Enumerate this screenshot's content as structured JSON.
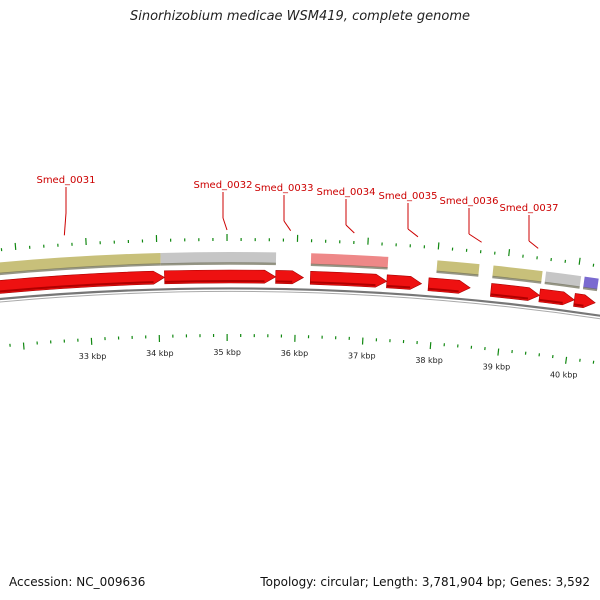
{
  "title": "Sinorhizobium medicae WSM419, complete genome",
  "footer": {
    "accession": "Accession: NC_009636",
    "summary": "Topology: circular; Length: 3,781,904 bp; Genes: 3,592"
  },
  "colors": {
    "cds": "#ee1111",
    "feature_olive": "#c8c07a",
    "feature_gray": "#c6c6c6",
    "feature_pink": "#ee8888",
    "feature_purple": "#7a6ad0",
    "tick": "#118811",
    "label": "#cc0000",
    "backbone": "#777777"
  },
  "gene_labels": [
    {
      "name": "Smed_0031",
      "kbp": 32.7
    },
    {
      "name": "Smed_0032",
      "kbp": 35.0
    },
    {
      "name": "Smed_0033",
      "kbp": 35.9
    },
    {
      "name": "Smed_0034",
      "kbp": 36.8
    },
    {
      "name": "Smed_0035",
      "kbp": 37.7
    },
    {
      "name": "Smed_0036",
      "kbp": 38.6
    },
    {
      "name": "Smed_0037",
      "kbp": 39.4
    }
  ],
  "kbp_ticks": [
    "33 kbp",
    "34 kbp",
    "35 kbp",
    "36 kbp",
    "37 kbp",
    "38 kbp",
    "39 kbp",
    "40 kbp"
  ],
  "cds_arrows": [
    {
      "start": 31.7,
      "end": 34.1
    },
    {
      "start": 34.1,
      "end": 35.7
    },
    {
      "start": 35.7,
      "end": 36.1
    },
    {
      "start": 36.2,
      "end": 37.3
    },
    {
      "start": 37.3,
      "end": 37.8
    },
    {
      "start": 37.9,
      "end": 38.5
    },
    {
      "start": 38.8,
      "end": 39.5
    },
    {
      "start": 39.5,
      "end": 40.0
    },
    {
      "start": 40.0,
      "end": 40.3
    }
  ],
  "upper_features": [
    {
      "start": 31.7,
      "end": 34.05,
      "type": "olive"
    },
    {
      "start": 34.05,
      "end": 35.7,
      "type": "gray"
    },
    {
      "start": 36.2,
      "end": 37.3,
      "type": "pink"
    },
    {
      "start": 38.0,
      "end": 38.6,
      "type": "olive"
    },
    {
      "start": 38.8,
      "end": 39.5,
      "type": "olive"
    },
    {
      "start": 39.55,
      "end": 40.05,
      "type": "gray"
    },
    {
      "start": 40.1,
      "end": 40.3,
      "type": "purple"
    }
  ]
}
